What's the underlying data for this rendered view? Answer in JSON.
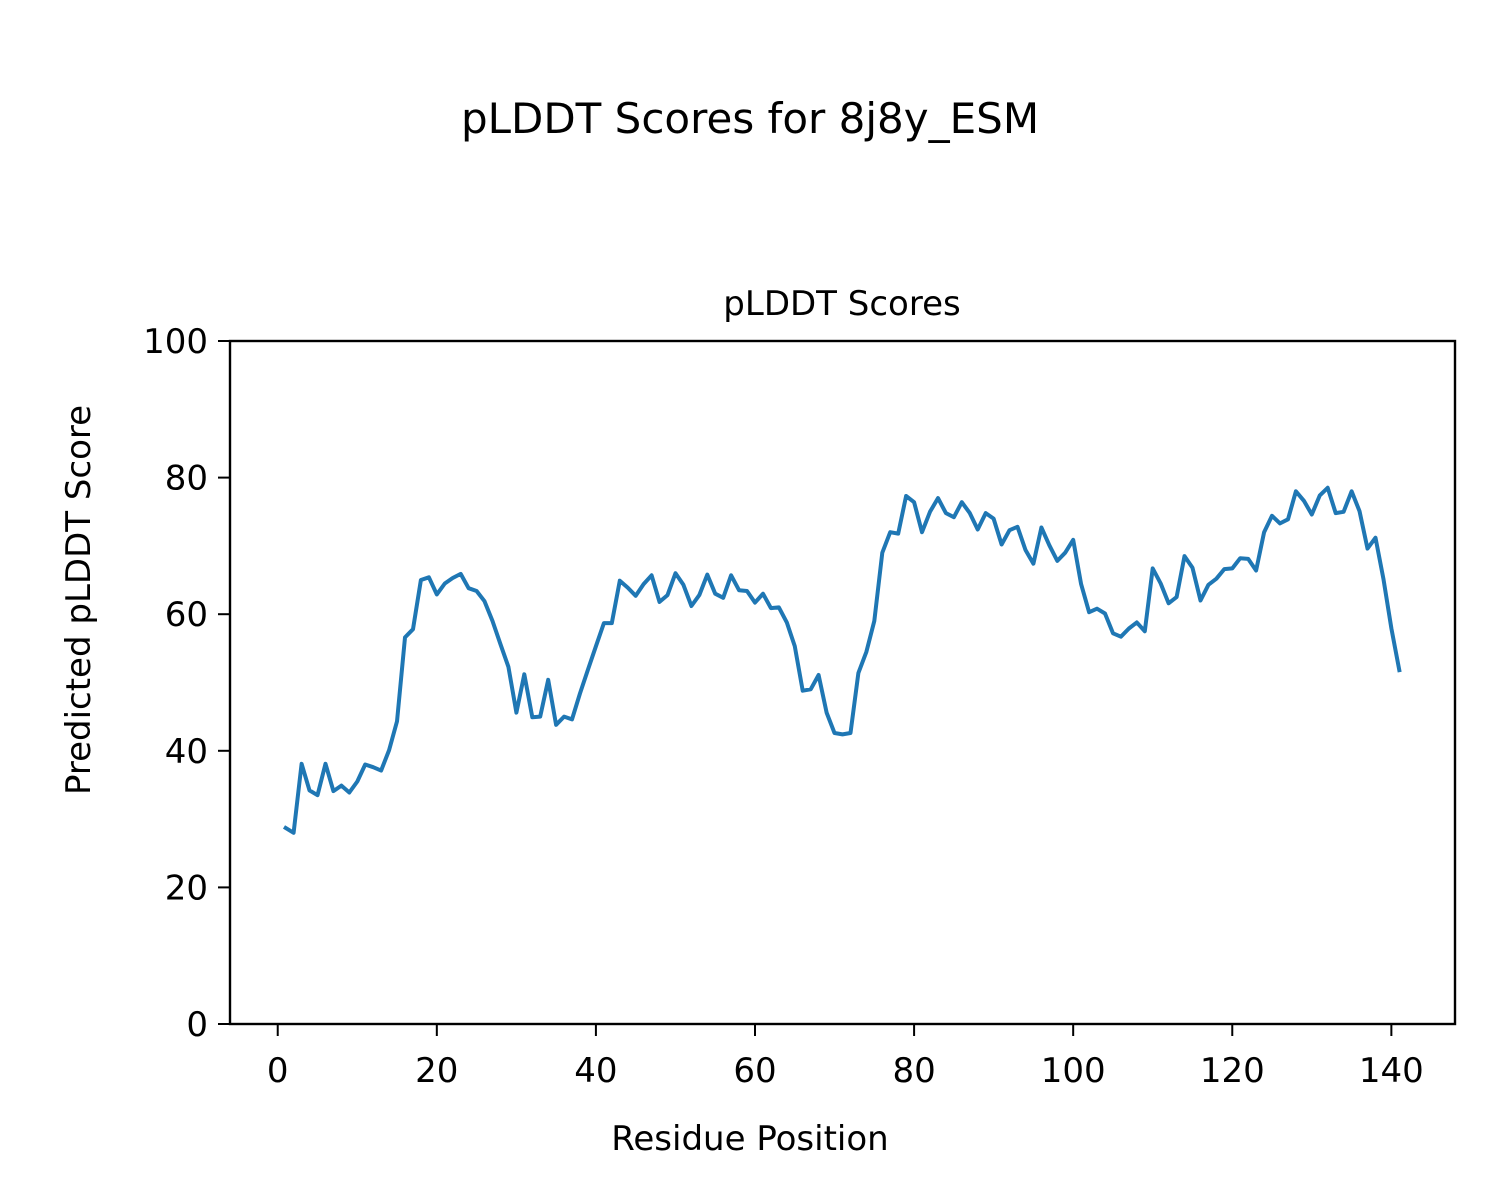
{
  "figure": {
    "suptitle": "pLDDT Scores for 8j8y_ESM"
  },
  "chart_data": {
    "type": "line",
    "title": "pLDDT Scores",
    "xlabel": "Residue Position",
    "ylabel": "Predicted pLDDT Score",
    "xlim": [
      -6,
      148
    ],
    "ylim": [
      0,
      100
    ],
    "xticks": [
      0,
      20,
      40,
      60,
      80,
      100,
      120,
      140
    ],
    "yticks": [
      0,
      20,
      40,
      60,
      80,
      100
    ],
    "grid": false,
    "legend": "none",
    "series": [
      {
        "color": "#1f77b4",
        "x": [
          1,
          2,
          3,
          4,
          5,
          6,
          7,
          8,
          9,
          10,
          11,
          12,
          13,
          14,
          15,
          16,
          17,
          18,
          19,
          20,
          21,
          22,
          23,
          24,
          25,
          26,
          27,
          28,
          29,
          30,
          31,
          32,
          33,
          34,
          35,
          36,
          37,
          38,
          39,
          40,
          41,
          42,
          43,
          44,
          45,
          46,
          47,
          48,
          49,
          50,
          51,
          52,
          53,
          54,
          55,
          56,
          57,
          58,
          59,
          60,
          61,
          62,
          63,
          64,
          65,
          66,
          67,
          68,
          69,
          70,
          71,
          72,
          73,
          74,
          75,
          76,
          77,
          78,
          79,
          80,
          81,
          82,
          83,
          84,
          85,
          86,
          87,
          88,
          89,
          90,
          91,
          92,
          93,
          94,
          95,
          96,
          97,
          98,
          99,
          100,
          101,
          102,
          103,
          104,
          105,
          106,
          107,
          108,
          109,
          110,
          111,
          112,
          113,
          114,
          115,
          116,
          117,
          118,
          119,
          120,
          121,
          122,
          123,
          124,
          125,
          126,
          127,
          128,
          129,
          130,
          131,
          132,
          133,
          134,
          135,
          136,
          137,
          138,
          139,
          140,
          141
        ],
        "y": [
          28.7,
          28.0,
          38.1,
          34.2,
          33.5,
          38.1,
          34.1,
          34.9,
          33.9,
          35.5,
          38.0,
          37.6,
          37.1,
          40.1,
          44.3,
          56.6,
          57.8,
          65.0,
          65.4,
          62.9,
          64.5,
          65.3,
          65.9,
          63.8,
          63.4,
          61.9,
          59.0,
          55.6,
          52.3,
          45.6,
          51.2,
          44.9,
          45.0,
          50.4,
          43.8,
          45.0,
          44.6,
          48.4,
          51.9,
          55.3,
          58.7,
          58.7,
          64.9,
          63.9,
          62.7,
          64.4,
          65.7,
          61.8,
          62.8,
          66.0,
          64.3,
          61.2,
          62.8,
          65.8,
          63.0,
          62.4,
          65.7,
          63.5,
          63.4,
          61.7,
          63.0,
          60.9,
          61.0,
          58.8,
          55.3,
          48.8,
          49.0,
          51.1,
          45.6,
          42.6,
          42.4,
          42.6,
          51.4,
          54.5,
          59.0,
          69.0,
          72.0,
          71.8,
          77.3,
          76.4,
          72.0,
          75.0,
          77.0,
          74.8,
          74.2,
          76.4,
          74.8,
          72.4,
          74.8,
          74.0,
          70.2,
          72.3,
          72.8,
          69.4,
          67.4,
          72.7,
          70.1,
          67.8,
          69.0,
          70.9,
          64.4,
          60.3,
          60.8,
          60.1,
          57.2,
          56.7,
          57.9,
          58.8,
          57.5,
          66.7,
          64.5,
          61.6,
          62.5,
          68.5,
          66.8,
          62.0,
          64.3,
          65.2,
          66.6,
          66.7,
          68.2,
          68.1,
          66.4,
          72.0,
          74.4,
          73.3,
          73.9,
          78.0,
          76.6,
          74.6,
          77.4,
          78.5,
          74.8,
          75.0,
          78.0,
          75.1,
          69.6,
          71.2,
          65.2,
          57.9,
          51.8
        ]
      }
    ]
  }
}
